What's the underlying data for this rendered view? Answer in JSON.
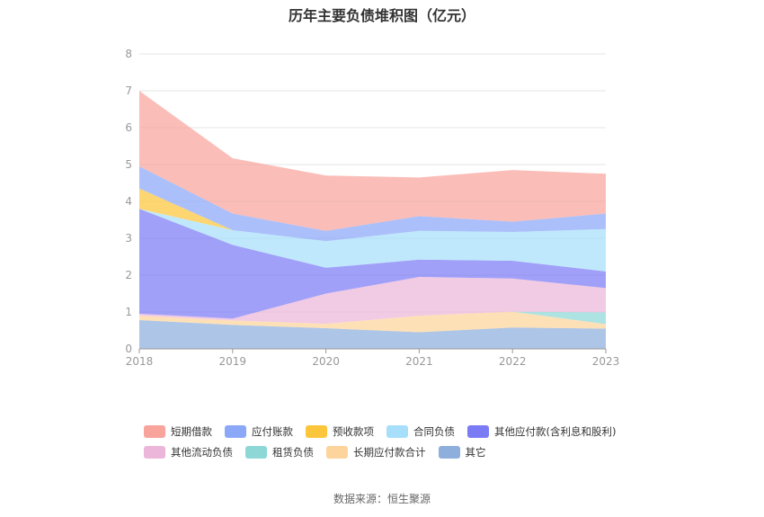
{
  "title": "历年主要负债堆积图（亿元）",
  "source": "数据来源：恒生聚源",
  "chart_data": {
    "type": "area",
    "stacked": true,
    "x": [
      "2018",
      "2019",
      "2020",
      "2021",
      "2022",
      "2023"
    ],
    "ylim": [
      0,
      8
    ],
    "yticks": [
      0,
      1,
      2,
      3,
      4,
      5,
      6,
      7,
      8
    ],
    "grid": true,
    "legend_position": "bottom",
    "series": [
      {
        "name": "其它",
        "color": "#8eaedc",
        "values": [
          0.78,
          0.65,
          0.56,
          0.45,
          0.58,
          0.55
        ]
      },
      {
        "name": "长期应付款合计",
        "color": "#fdd49b",
        "values": [
          0.12,
          0.12,
          0.12,
          0.45,
          0.43,
          0.12
        ]
      },
      {
        "name": "租赁负债",
        "color": "#8dd8d7",
        "values": [
          0.0,
          0.0,
          0.0,
          0.0,
          0.0,
          0.32
        ]
      },
      {
        "name": "其他流动负债",
        "color": "#ecb6da",
        "values": [
          0.05,
          0.05,
          0.82,
          1.05,
          0.9,
          0.66
        ]
      },
      {
        "name": "其他应付款(含利息和股利)",
        "color": "#7b7cf5",
        "values": [
          2.85,
          2.0,
          0.7,
          0.47,
          0.48,
          0.45
        ]
      },
      {
        "name": "合同负债",
        "color": "#a7dffb",
        "values": [
          0.0,
          0.4,
          0.72,
          0.78,
          0.78,
          1.15
        ]
      },
      {
        "name": "预收款项",
        "color": "#fcc63c",
        "values": [
          0.55,
          0.0,
          0.0,
          0.0,
          0.0,
          0.0
        ]
      },
      {
        "name": "应付账款",
        "color": "#8ba8f8",
        "values": [
          0.6,
          0.45,
          0.28,
          0.4,
          0.28,
          0.42
        ]
      },
      {
        "name": "短期借款",
        "color": "#f8a49c",
        "values": [
          2.05,
          1.5,
          1.5,
          1.05,
          1.4,
          1.08
        ]
      }
    ]
  },
  "legend_rows": [
    [
      "短期借款",
      "应付账款",
      "预收款项",
      "合同负债",
      "其他应付款(含利息和股利)"
    ],
    [
      "其他流动负债",
      "租赁负债",
      "长期应付款合计",
      "其它"
    ]
  ]
}
